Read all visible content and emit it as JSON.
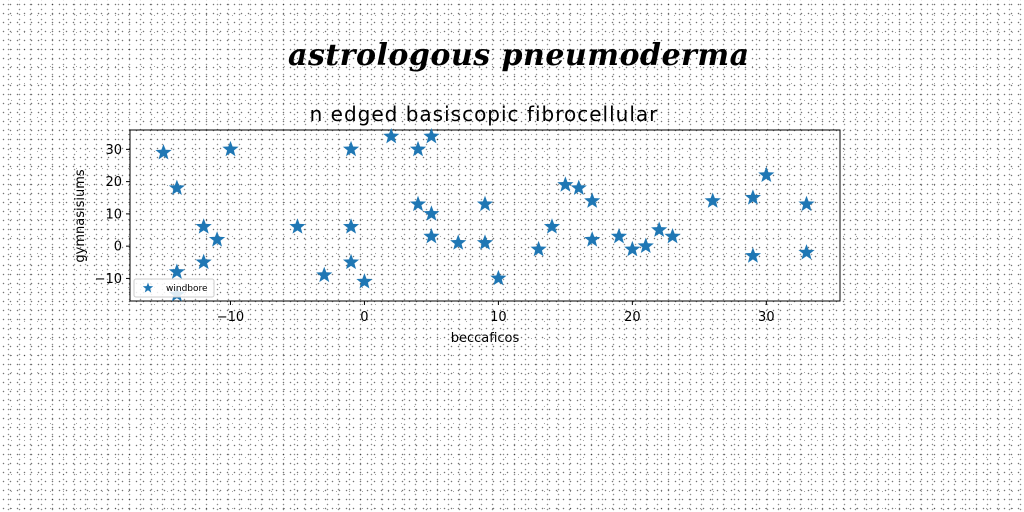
{
  "suptitle": "astrologous pneumoderma",
  "chart_data": {
    "type": "scatter",
    "title": "n edged basiscopic fibrocellular",
    "xlabel": "beccaficos",
    "ylabel": "gymnasisiums",
    "xlim": [
      -17.5,
      35.5
    ],
    "ylim": [
      -17,
      36
    ],
    "xticks": [
      -10,
      0,
      10,
      20,
      30
    ],
    "yticks": [
      -10,
      0,
      10,
      20,
      30
    ],
    "grid": false,
    "legend_position": "lower-left",
    "series": [
      {
        "name": "windbore",
        "color": "#1f77b4",
        "marker": "star",
        "points": [
          [
            -15,
            29
          ],
          [
            -14,
            18
          ],
          [
            -14,
            -8
          ],
          [
            -14,
            -15
          ],
          [
            -12,
            6
          ],
          [
            -12,
            -5
          ],
          [
            -11,
            2
          ],
          [
            -10,
            30
          ],
          [
            -5,
            6
          ],
          [
            -3,
            -9
          ],
          [
            -1,
            30
          ],
          [
            -1,
            6
          ],
          [
            -1,
            -5
          ],
          [
            0,
            -11
          ],
          [
            2,
            34
          ],
          [
            4,
            30
          ],
          [
            4,
            13
          ],
          [
            5,
            34
          ],
          [
            5,
            10
          ],
          [
            5,
            3
          ],
          [
            7,
            1
          ],
          [
            9,
            13
          ],
          [
            9,
            1
          ],
          [
            10,
            -10
          ],
          [
            13,
            -1
          ],
          [
            14,
            6
          ],
          [
            15,
            19
          ],
          [
            16,
            18
          ],
          [
            17,
            14
          ],
          [
            17,
            2
          ],
          [
            19,
            3
          ],
          [
            20,
            -1
          ],
          [
            21,
            0
          ],
          [
            22,
            5
          ],
          [
            23,
            3
          ],
          [
            26,
            14
          ],
          [
            29,
            15
          ],
          [
            29,
            -3
          ],
          [
            30,
            22
          ],
          [
            33,
            13
          ],
          [
            33,
            -2
          ]
        ]
      }
    ]
  }
}
